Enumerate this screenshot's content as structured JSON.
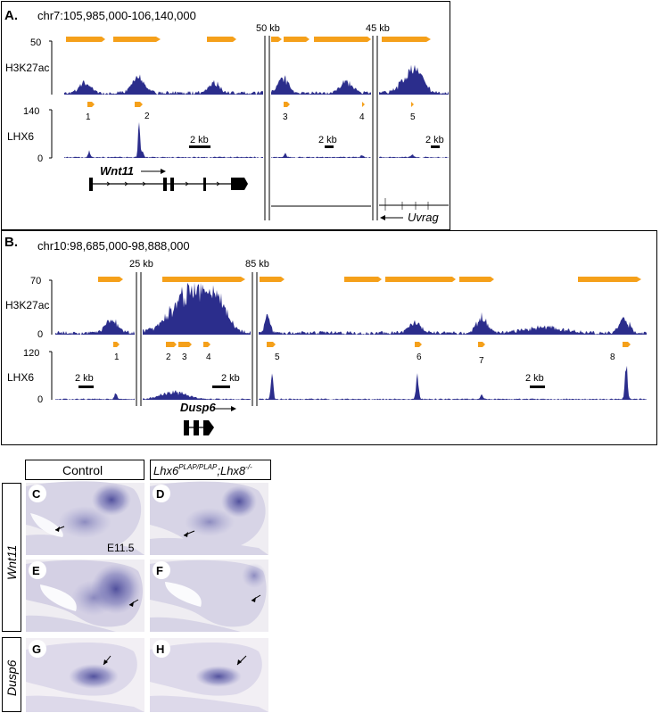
{
  "panelA": {
    "label": "A.",
    "coords": "chr7:105,985,000-106,140,000",
    "gap1": "50 kb",
    "gap2": "45 kb",
    "track1": {
      "name": "H3K27ac",
      "max": "50"
    },
    "track2": {
      "name": "LHX6",
      "max": "140",
      "min": "0"
    },
    "peaks": [
      "1",
      "2",
      "3",
      "4",
      "5"
    ],
    "scalebar": "2 kb",
    "gene1": "Wnt11",
    "gene2": "Uvrag"
  },
  "panelB": {
    "label": "B.",
    "coords": "chr10:98,685,000-98,888,000",
    "gap1": "25 kb",
    "gap2": "85 kb",
    "track1": {
      "name": "H3K27ac",
      "max": "70",
      "min": "0"
    },
    "track2": {
      "name": "LHX6",
      "max": "120",
      "min": "0"
    },
    "peaks": [
      "1",
      "2",
      "3",
      "4",
      "5",
      "6",
      "7",
      "8"
    ],
    "scalebar": "2 kb",
    "gene": "Dusp6"
  },
  "panelC": {
    "col1": "Control",
    "col2_gene": "Lhx6",
    "col2_sup1": "PLAP/PLAP",
    "col2_sep": ";",
    "col2_gene2": "Lhx8",
    "col2_sup2": "-/-",
    "row1": "Wnt11",
    "row2": "Dusp6",
    "images": [
      "C",
      "D",
      "E",
      "F",
      "G",
      "H"
    ],
    "stage": "E11.5"
  },
  "colors": {
    "navy": "#2b2d8c",
    "orange": "#f5a01a",
    "tissue": "#d9d6e6",
    "stain": "#4a4a9c"
  }
}
